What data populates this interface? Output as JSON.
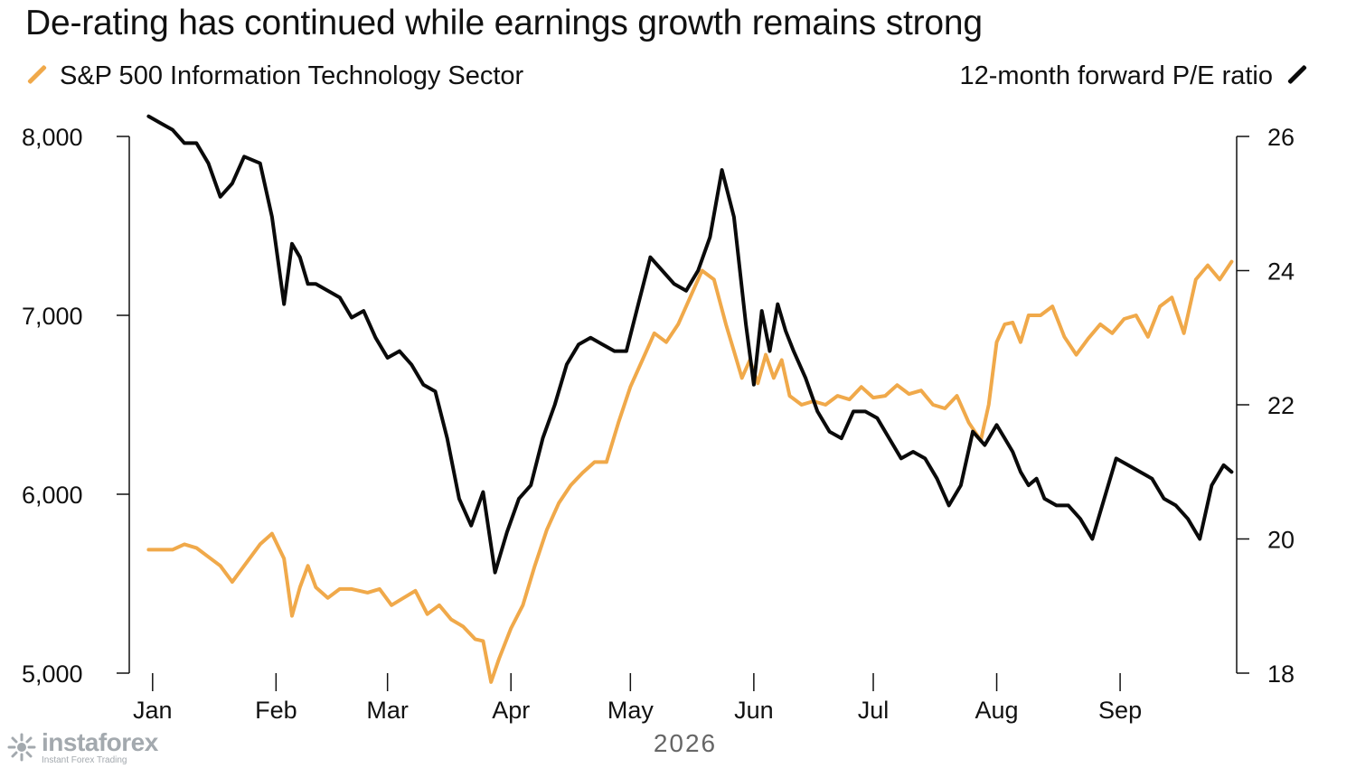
{
  "title": "De-rating has continued while earnings growth remains strong",
  "legend": {
    "left_label": "S&P 500 Information Technology Sector",
    "right_label": "12-month forward P/E ratio"
  },
  "colors": {
    "sector": "#f0a94a",
    "pe": "#0a0a0a",
    "axis": "#111111",
    "year": "#666666"
  },
  "watermark": {
    "brand": "instaforex",
    "tagline": "Instant Forex Trading"
  },
  "chart_data": {
    "type": "line",
    "title": "De-rating has continued while earnings growth remains strong",
    "x_label": "2026",
    "x_ticks": [
      "Jan",
      "Feb",
      "Mar",
      "Apr",
      "May",
      "Jun",
      "Jul",
      "Aug",
      "Sep"
    ],
    "x_tick_days": [
      1,
      32,
      60,
      91,
      121,
      152,
      182,
      213,
      244
    ],
    "x_range_days": [
      -1,
      271
    ],
    "y_left": {
      "ticks": [
        "8,000",
        "7,000",
        "6,000",
        "5,000"
      ],
      "tick_values": [
        8000,
        7000,
        6000,
        5000
      ],
      "range": [
        5000,
        8000
      ]
    },
    "y_right": {
      "ticks": [
        "26",
        "24",
        "22",
        "20",
        "18"
      ],
      "tick_values": [
        26,
        24,
        22,
        20,
        18
      ],
      "range": [
        18,
        26
      ]
    },
    "grid": false,
    "legend_position": "top",
    "series": [
      {
        "name": "S&P 500 Information Technology Sector",
        "axis": "left",
        "color": "#f0a94a",
        "x_days": [
          0,
          3,
          6,
          9,
          12,
          15,
          18,
          21,
          24,
          28,
          31,
          34,
          36,
          38,
          40,
          42,
          45,
          48,
          51,
          55,
          58,
          61,
          64,
          67,
          70,
          73,
          76,
          79,
          82,
          84,
          86,
          88,
          91,
          94,
          97,
          100,
          103,
          106,
          109,
          112,
          115,
          118,
          121,
          124,
          127,
          130,
          133,
          136,
          139,
          142,
          145,
          147,
          149,
          151,
          153,
          155,
          157,
          159,
          161,
          164,
          167,
          170,
          173,
          176,
          179,
          182,
          185,
          188,
          191,
          194,
          197,
          200,
          203,
          206,
          209,
          211,
          213,
          215,
          217,
          219,
          221,
          224,
          227,
          230,
          233,
          236,
          239,
          242,
          245,
          248,
          251,
          254,
          257,
          260,
          263,
          266,
          269,
          272
        ],
        "values": [
          5690,
          5690,
          5690,
          5720,
          5700,
          5650,
          5600,
          5510,
          5600,
          5720,
          5780,
          5640,
          5320,
          5480,
          5600,
          5480,
          5420,
          5470,
          5470,
          5450,
          5470,
          5380,
          5420,
          5460,
          5330,
          5380,
          5300,
          5260,
          5190,
          5180,
          4950,
          5080,
          5250,
          5380,
          5600,
          5800,
          5950,
          6050,
          6120,
          6180,
          6180,
          6400,
          6600,
          6750,
          6900,
          6850,
          6950,
          7100,
          7250,
          7200,
          6950,
          6800,
          6650,
          6750,
          6620,
          6780,
          6650,
          6750,
          6550,
          6500,
          6520,
          6500,
          6550,
          6530,
          6600,
          6540,
          6550,
          6610,
          6560,
          6580,
          6500,
          6480,
          6550,
          6400,
          6300,
          6500,
          6850,
          6950,
          6960,
          6850,
          7000,
          7000,
          7050,
          6880,
          6780,
          6870,
          6950,
          6900,
          6980,
          7000,
          6880,
          7050,
          7100,
          6900,
          7200,
          7280,
          7200,
          7300
        ]
      },
      {
        "name": "12-month forward P/E ratio",
        "axis": "right",
        "color": "#0a0a0a",
        "x_days": [
          0,
          3,
          6,
          9,
          12,
          15,
          18,
          21,
          24,
          28,
          31,
          34,
          36,
          38,
          40,
          42,
          45,
          48,
          51,
          54,
          57,
          60,
          63,
          66,
          69,
          72,
          75,
          78,
          81,
          84,
          87,
          90,
          93,
          96,
          99,
          102,
          105,
          108,
          111,
          114,
          117,
          120,
          123,
          126,
          129,
          132,
          135,
          138,
          141,
          144,
          147,
          150,
          152,
          154,
          156,
          158,
          160,
          162,
          165,
          168,
          171,
          174,
          177,
          180,
          183,
          186,
          189,
          192,
          195,
          198,
          201,
          204,
          207,
          210,
          213,
          215,
          217,
          219,
          221,
          223,
          225,
          228,
          231,
          234,
          237,
          240,
          243,
          246,
          249,
          252,
          255,
          258,
          261,
          264,
          267,
          270,
          272
        ],
        "values": [
          26.3,
          26.2,
          26.1,
          25.9,
          25.9,
          25.6,
          25.1,
          25.3,
          25.7,
          25.6,
          24.8,
          23.5,
          24.4,
          24.2,
          23.8,
          23.8,
          23.7,
          23.6,
          23.3,
          23.4,
          23.0,
          22.7,
          22.8,
          22.6,
          22.3,
          22.2,
          21.5,
          20.6,
          20.2,
          20.7,
          19.5,
          20.1,
          20.6,
          20.8,
          21.5,
          22.0,
          22.6,
          22.9,
          23.0,
          22.9,
          22.8,
          22.8,
          23.5,
          24.2,
          24.0,
          23.8,
          23.7,
          24.0,
          24.5,
          25.5,
          24.8,
          23.2,
          22.3,
          23.4,
          22.8,
          23.5,
          23.1,
          22.8,
          22.4,
          21.9,
          21.6,
          21.5,
          21.9,
          21.9,
          21.8,
          21.5,
          21.2,
          21.3,
          21.2,
          20.9,
          20.5,
          20.8,
          21.6,
          21.4,
          21.7,
          21.5,
          21.3,
          21.0,
          20.8,
          20.9,
          20.6,
          20.5,
          20.5,
          20.3,
          20.0,
          20.6,
          21.2,
          21.1,
          21.0,
          20.9,
          20.6,
          20.5,
          20.3,
          20.0,
          20.8,
          21.1,
          21.0
        ]
      }
    ]
  }
}
